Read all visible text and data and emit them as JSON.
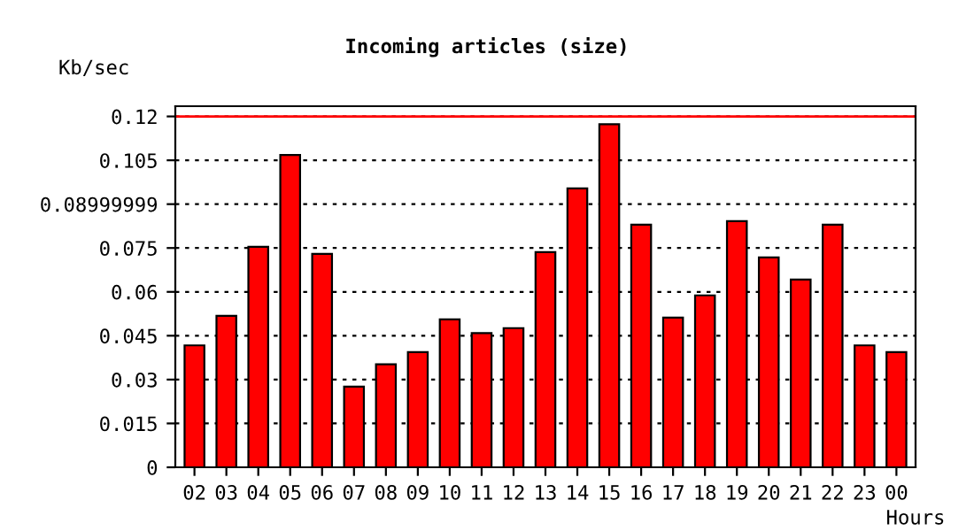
{
  "chart_data": {
    "type": "bar",
    "title": "Incoming articles (size)",
    "xlabel": "Hours",
    "ylabel": "Kb/sec",
    "categories": [
      "02",
      "03",
      "04",
      "05",
      "06",
      "07",
      "08",
      "09",
      "10",
      "11",
      "12",
      "13",
      "14",
      "15",
      "16",
      "17",
      "18",
      "19",
      "20",
      "21",
      "22",
      "23",
      "00"
    ],
    "values": [
      0.0417,
      0.0518,
      0.0754,
      0.1068,
      0.073,
      0.0276,
      0.0352,
      0.0394,
      0.0506,
      0.0459,
      0.0476,
      0.0736,
      0.0954,
      0.1173,
      0.083,
      0.0512,
      0.0588,
      0.0842,
      0.0718,
      0.0642,
      0.083,
      0.0417,
      0.0394
    ],
    "color": "#ff0000",
    "ylim": [
      0,
      0.1235
    ],
    "yticks": [
      0,
      0.015,
      0.03,
      0.045,
      0.06,
      0.075,
      0.08999999,
      0.105,
      0.12
    ],
    "ref_lines": [
      {
        "axis": "y",
        "value": 0.12,
        "color": "#ff0000"
      }
    ],
    "grid": "y"
  }
}
